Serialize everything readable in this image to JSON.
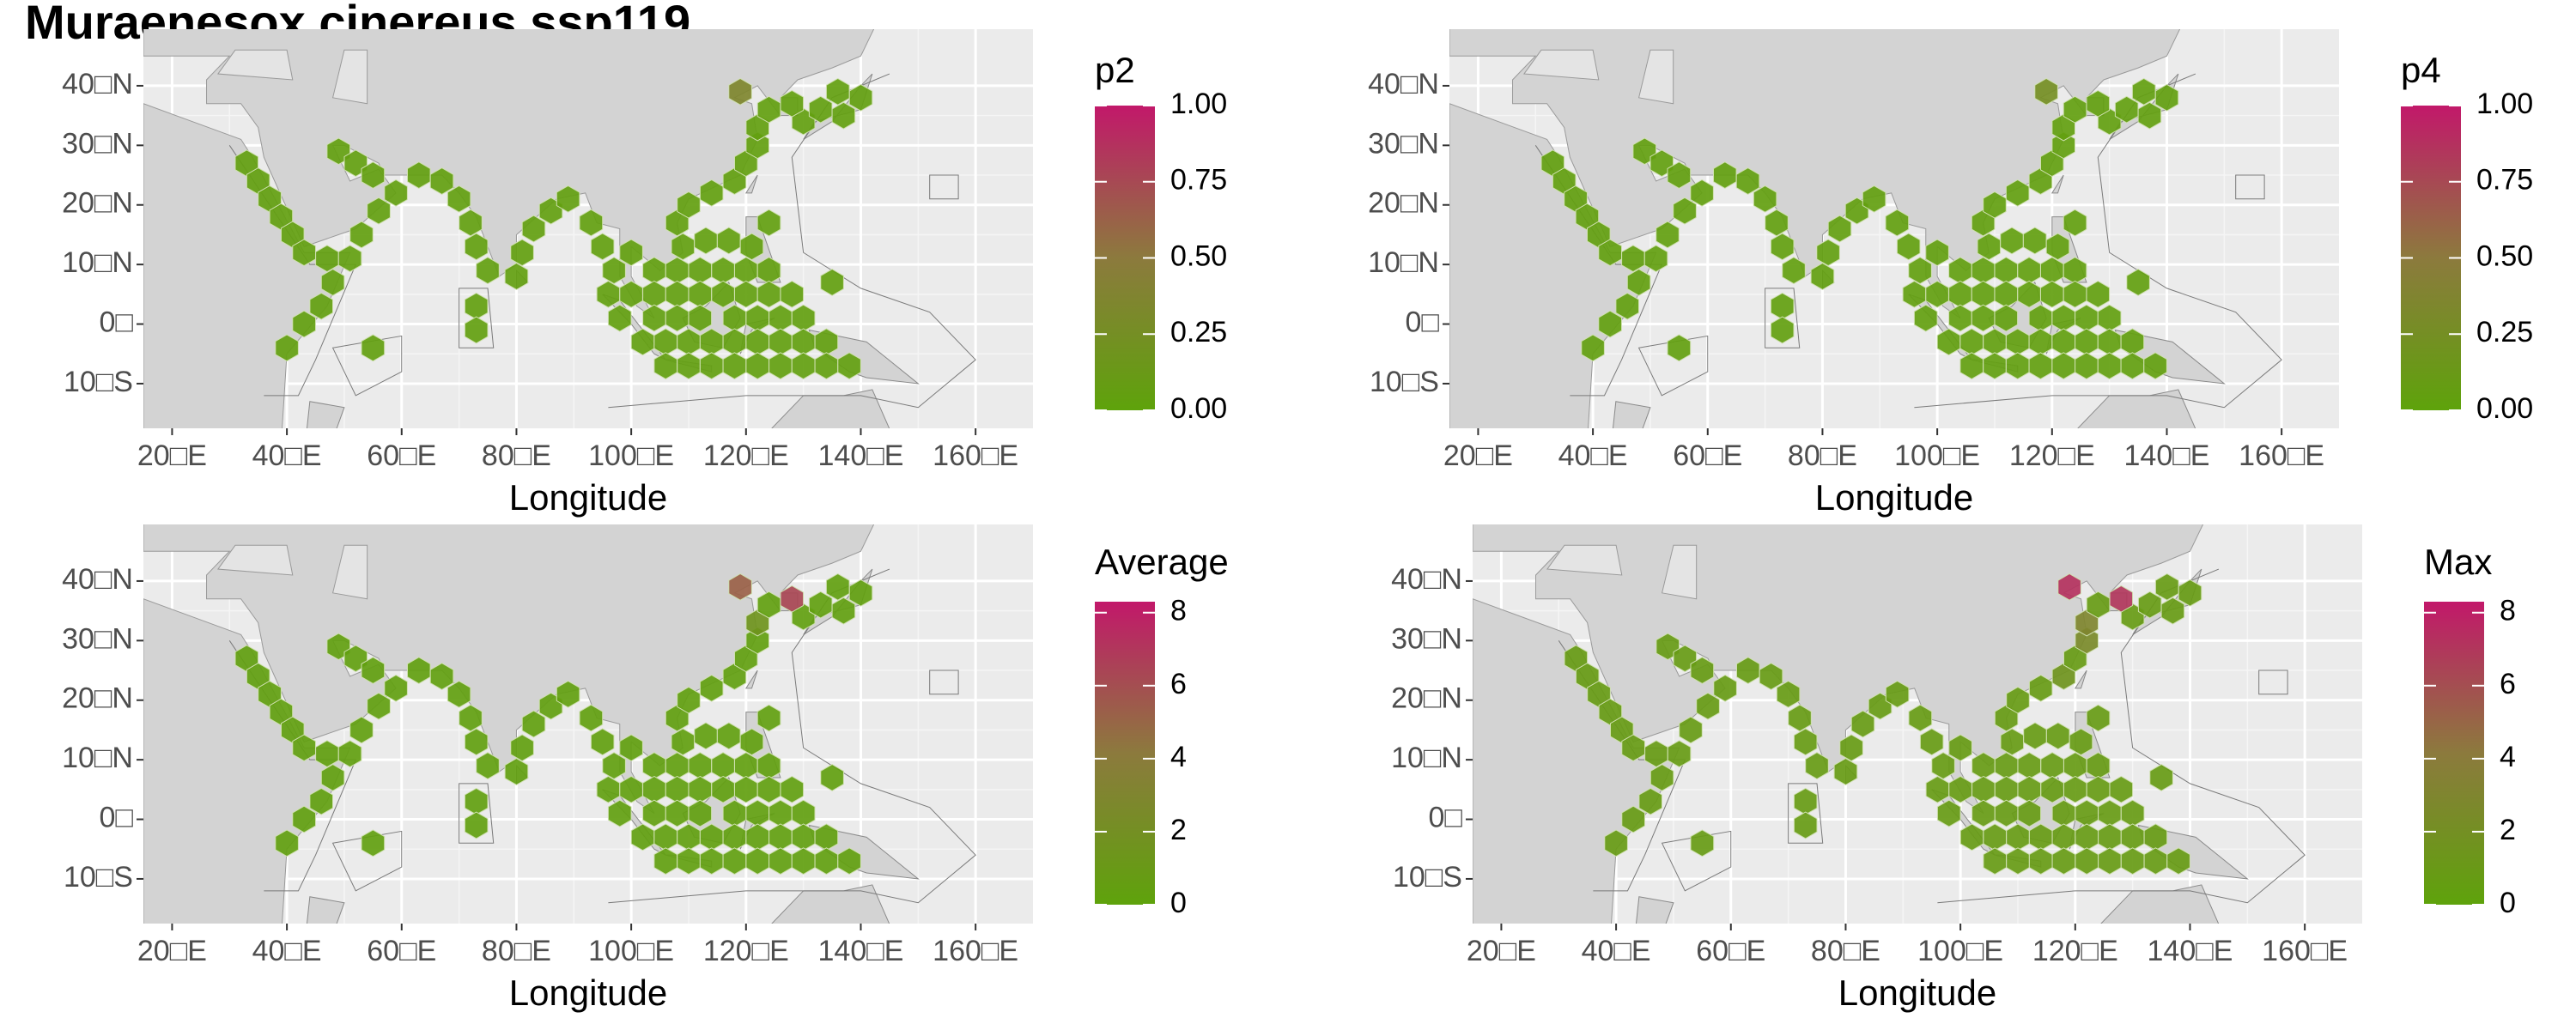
{
  "title": "Muraenesox cinereus ssp119",
  "grid_cells": {
    "lon": [
      33,
      35,
      37,
      39,
      41,
      43,
      47,
      51,
      48,
      46,
      43,
      40,
      53,
      56,
      59,
      49,
      52,
      55,
      63,
      67,
      70,
      72,
      73,
      75,
      73,
      73,
      55,
      80,
      81,
      83,
      86,
      89,
      93,
      95,
      97,
      108,
      100,
      109,
      113,
      117,
      121,
      104,
      108,
      112,
      116,
      120,
      124,
      96,
      100,
      104,
      108,
      112,
      116,
      120,
      124,
      128,
      98,
      104,
      108,
      112,
      118,
      122,
      126,
      130,
      102,
      106,
      110,
      114,
      118,
      122,
      126,
      130,
      134,
      106,
      110,
      114,
      118,
      122,
      126,
      130,
      134,
      138,
      110,
      114,
      118,
      120,
      122,
      122,
      124,
      130,
      133,
      137,
      140,
      136,
      124,
      135,
      119,
      128
    ],
    "lat": [
      27,
      24,
      21,
      18,
      15,
      12,
      11,
      11,
      7,
      3,
      0,
      -4,
      15,
      19,
      22,
      29,
      27,
      25,
      25,
      24,
      21,
      17,
      13,
      9,
      3,
      -1,
      -4,
      8,
      12,
      16,
      19,
      21,
      17,
      13,
      9,
      17,
      12,
      13,
      14,
      14,
      13,
      9,
      9,
      9,
      9,
      9,
      9,
      5,
      5,
      5,
      5,
      5,
      5,
      5,
      5,
      5,
      1,
      1,
      1,
      1,
      1,
      1,
      1,
      1,
      -3,
      -3,
      -3,
      -3,
      -3,
      -3,
      -3,
      -3,
      -3,
      -7,
      -7,
      -7,
      -7,
      -7,
      -7,
      -7,
      -7,
      -7,
      20,
      22,
      24,
      27,
      30,
      33,
      36,
      34,
      36,
      35,
      38,
      39,
      17,
      7,
      39,
      37
    ]
  },
  "chart_data": [
    {
      "type": "hexmap",
      "legend_title": "p2",
      "x_label": "Longitude",
      "xlim": [
        15,
        170
      ],
      "ylim": [
        -17.5,
        49.5
      ],
      "xticks": [
        {
          "value": 20,
          "label": "20□E"
        },
        {
          "value": 40,
          "label": "40□E"
        },
        {
          "value": 60,
          "label": "60□E"
        },
        {
          "value": 80,
          "label": "80□E"
        },
        {
          "value": 100,
          "label": "100□E"
        },
        {
          "value": 120,
          "label": "120□E"
        },
        {
          "value": 140,
          "label": "140□E"
        },
        {
          "value": 160,
          "label": "160□E"
        }
      ],
      "yticks": [
        {
          "value": -10,
          "label": "10□S"
        },
        {
          "value": 0,
          "label": "0□"
        },
        {
          "value": 10,
          "label": "10□N"
        },
        {
          "value": 20,
          "label": "20□N"
        },
        {
          "value": 30,
          "label": "30□N"
        },
        {
          "value": 40,
          "label": "40□N"
        }
      ],
      "clim": [
        0,
        1
      ],
      "cticks": [
        {
          "value": 0,
          "label": "0.00"
        },
        {
          "value": 0.25,
          "label": "0.25"
        },
        {
          "value": 0.5,
          "label": "0.50"
        },
        {
          "value": 0.75,
          "label": "0.75"
        },
        {
          "value": 1,
          "label": "1.00"
        }
      ],
      "colors": [
        "#5ea30b",
        "#8c7a3d",
        "#c2186a"
      ],
      "grid": true,
      "values": [
        0.05,
        0.05,
        0.05,
        0.05,
        0.05,
        0.05,
        0.05,
        0.05,
        0.05,
        0.05,
        0.05,
        0.05,
        0.05,
        0.05,
        0.05,
        0.05,
        0.05,
        0.05,
        0.05,
        0.05,
        0.05,
        0.05,
        0.05,
        0.05,
        0.05,
        0.05,
        0.05,
        0.05,
        0.05,
        0.05,
        0.05,
        0.05,
        0.05,
        0.05,
        0.05,
        0.05,
        0.05,
        0.05,
        0.05,
        0.05,
        0.05,
        0.05,
        0.05,
        0.05,
        0.05,
        0.05,
        0.05,
        0.05,
        0.05,
        0.05,
        0.05,
        0.05,
        0.05,
        0.05,
        0.05,
        0.05,
        0.05,
        0.05,
        0.05,
        0.05,
        0.05,
        0.05,
        0.05,
        0.05,
        0.05,
        0.05,
        0.05,
        0.05,
        0.05,
        0.05,
        0.05,
        0.05,
        0.05,
        0.05,
        0.05,
        0.05,
        0.05,
        0.05,
        0.05,
        0.05,
        0.05,
        0.05,
        0.05,
        0.05,
        0.05,
        0.05,
        0.05,
        0.05,
        0.05,
        0.05,
        0.05,
        0.05,
        0.05,
        0.05,
        0.05,
        0.05,
        0.35,
        0.05
      ]
    },
    {
      "type": "hexmap",
      "legend_title": "p4",
      "x_label": "Longitude",
      "xlim": [
        15,
        170
      ],
      "ylim": [
        -17.5,
        49.5
      ],
      "xticks": [
        {
          "value": 20,
          "label": "20□E"
        },
        {
          "value": 40,
          "label": "40□E"
        },
        {
          "value": 60,
          "label": "60□E"
        },
        {
          "value": 80,
          "label": "80□E"
        },
        {
          "value": 100,
          "label": "100□E"
        },
        {
          "value": 120,
          "label": "120□E"
        },
        {
          "value": 140,
          "label": "140□E"
        },
        {
          "value": 160,
          "label": "160□E"
        }
      ],
      "yticks": [
        {
          "value": -10,
          "label": "10□S"
        },
        {
          "value": 0,
          "label": "0□"
        },
        {
          "value": 10,
          "label": "10□N"
        },
        {
          "value": 20,
          "label": "20□N"
        },
        {
          "value": 30,
          "label": "30□N"
        },
        {
          "value": 40,
          "label": "40□N"
        }
      ],
      "clim": [
        0,
        1
      ],
      "cticks": [
        {
          "value": 0,
          "label": "0.00"
        },
        {
          "value": 0.25,
          "label": "0.25"
        },
        {
          "value": 0.5,
          "label": "0.50"
        },
        {
          "value": 0.75,
          "label": "0.75"
        },
        {
          "value": 1,
          "label": "1.00"
        }
      ],
      "colors": [
        "#5ea30b",
        "#8c7a3d",
        "#c2186a"
      ],
      "grid": true,
      "values": [
        0.05,
        0.05,
        0.05,
        0.05,
        0.05,
        0.05,
        0.05,
        0.05,
        0.05,
        0.05,
        0.05,
        0.05,
        0.05,
        0.05,
        0.05,
        0.05,
        0.05,
        0.05,
        0.05,
        0.05,
        0.05,
        0.05,
        0.05,
        0.05,
        0.05,
        0.05,
        0.05,
        0.05,
        0.05,
        0.05,
        0.05,
        0.05,
        0.05,
        0.05,
        0.05,
        0.05,
        0.05,
        0.05,
        0.05,
        0.05,
        0.05,
        0.05,
        0.05,
        0.05,
        0.05,
        0.05,
        0.05,
        0.05,
        0.05,
        0.05,
        0.05,
        0.05,
        0.05,
        0.05,
        0.05,
        0.05,
        0.05,
        0.05,
        0.05,
        0.05,
        0.05,
        0.05,
        0.05,
        0.05,
        0.05,
        0.05,
        0.05,
        0.05,
        0.05,
        0.05,
        0.05,
        0.05,
        0.05,
        0.05,
        0.05,
        0.05,
        0.05,
        0.05,
        0.05,
        0.05,
        0.05,
        0.05,
        0.05,
        0.05,
        0.05,
        0.05,
        0.05,
        0.05,
        0.05,
        0.05,
        0.05,
        0.05,
        0.05,
        0.05,
        0.05,
        0.05,
        0.25,
        0.05
      ]
    },
    {
      "type": "hexmap",
      "legend_title": "Average",
      "x_label": "Longitude",
      "xlim": [
        15,
        170
      ],
      "ylim": [
        -17.5,
        49.5
      ],
      "xticks": [
        {
          "value": 20,
          "label": "20□E"
        },
        {
          "value": 40,
          "label": "40□E"
        },
        {
          "value": 60,
          "label": "60□E"
        },
        {
          "value": 80,
          "label": "80□E"
        },
        {
          "value": 100,
          "label": "100□E"
        },
        {
          "value": 120,
          "label": "120□E"
        },
        {
          "value": 140,
          "label": "140□E"
        },
        {
          "value": 160,
          "label": "160□E"
        }
      ],
      "yticks": [
        {
          "value": -10,
          "label": "10□S"
        },
        {
          "value": 0,
          "label": "0□"
        },
        {
          "value": 10,
          "label": "10□N"
        },
        {
          "value": 20,
          "label": "20□N"
        },
        {
          "value": 30,
          "label": "30□N"
        },
        {
          "value": 40,
          "label": "40□N"
        }
      ],
      "clim": [
        0,
        8.3
      ],
      "cticks": [
        0,
        2,
        4,
        6,
        8
      ],
      "colors": [
        "#5ea30b",
        "#8c7a3d",
        "#c2186a"
      ],
      "grid": true,
      "values": [
        0.4,
        0.4,
        0.4,
        0.4,
        0.4,
        0.4,
        0.4,
        0.4,
        0.4,
        0.4,
        0.4,
        0.4,
        0.4,
        0.4,
        0.4,
        0.4,
        0.4,
        0.4,
        0.4,
        0.4,
        0.4,
        0.4,
        0.4,
        0.4,
        0.4,
        0.4,
        0.4,
        0.4,
        0.4,
        0.4,
        0.4,
        0.4,
        0.4,
        0.4,
        0.4,
        0.4,
        0.4,
        0.4,
        0.4,
        0.4,
        0.4,
        0.4,
        0.4,
        0.4,
        0.4,
        0.4,
        0.4,
        0.4,
        0.4,
        0.4,
        0.4,
        0.4,
        0.4,
        0.4,
        0.4,
        0.4,
        0.4,
        0.4,
        0.4,
        0.4,
        0.4,
        0.4,
        0.4,
        0.4,
        0.4,
        0.4,
        0.4,
        0.4,
        0.4,
        0.4,
        0.4,
        0.4,
        0.4,
        0.4,
        0.4,
        0.4,
        0.4,
        0.4,
        0.4,
        0.4,
        0.4,
        0.4,
        0.4,
        0.4,
        0.4,
        0.4,
        0.4,
        1.5,
        0.4,
        0.4,
        0.4,
        0.4,
        0.4,
        0.4,
        0.4,
        0.4,
        5.2,
        6.3
      ]
    },
    {
      "type": "hexmap",
      "legend_title": "Max",
      "x_label": "Longitude",
      "xlim": [
        15,
        170
      ],
      "ylim": [
        -17.5,
        49.5
      ],
      "xticks": [
        {
          "value": 20,
          "label": "20□E"
        },
        {
          "value": 40,
          "label": "40□E"
        },
        {
          "value": 60,
          "label": "60□E"
        },
        {
          "value": 80,
          "label": "80□E"
        },
        {
          "value": 100,
          "label": "100□E"
        },
        {
          "value": 120,
          "label": "120□E"
        },
        {
          "value": 140,
          "label": "140□E"
        },
        {
          "value": 160,
          "label": "160□E"
        }
      ],
      "yticks": [
        {
          "value": -10,
          "label": "10□S"
        },
        {
          "value": 0,
          "label": "0□"
        },
        {
          "value": 10,
          "label": "10□N"
        },
        {
          "value": 20,
          "label": "20□N"
        },
        {
          "value": 30,
          "label": "30□N"
        },
        {
          "value": 40,
          "label": "40□N"
        }
      ],
      "clim": [
        0,
        8.3
      ],
      "cticks": [
        0,
        2,
        4,
        6,
        8
      ],
      "colors": [
        "#5ea30b",
        "#8c7a3d",
        "#c2186a"
      ],
      "grid": true,
      "values": [
        0.8,
        0.8,
        0.8,
        0.8,
        0.8,
        0.8,
        0.8,
        0.8,
        0.8,
        0.8,
        0.8,
        0.8,
        0.8,
        0.8,
        0.8,
        0.8,
        0.8,
        0.8,
        0.8,
        0.8,
        0.8,
        0.8,
        0.8,
        0.8,
        0.8,
        0.8,
        0.8,
        0.8,
        0.8,
        0.8,
        0.8,
        0.8,
        0.8,
        0.8,
        0.8,
        0.8,
        0.8,
        0.8,
        0.8,
        0.8,
        0.8,
        0.8,
        0.8,
        0.8,
        0.8,
        0.8,
        0.8,
        0.8,
        0.8,
        0.8,
        0.8,
        0.8,
        0.8,
        0.8,
        0.8,
        0.8,
        0.8,
        0.8,
        0.8,
        0.8,
        0.8,
        0.8,
        0.8,
        0.8,
        0.8,
        0.8,
        0.8,
        0.8,
        0.8,
        0.8,
        0.8,
        0.8,
        0.8,
        0.8,
        0.8,
        0.8,
        0.8,
        0.8,
        0.8,
        0.8,
        0.8,
        0.8,
        0.8,
        0.8,
        1.5,
        0.8,
        2.5,
        3,
        0.8,
        0.8,
        0.8,
        0.8,
        0.8,
        0.8,
        0.8,
        0.8,
        7.2,
        7
      ]
    }
  ]
}
